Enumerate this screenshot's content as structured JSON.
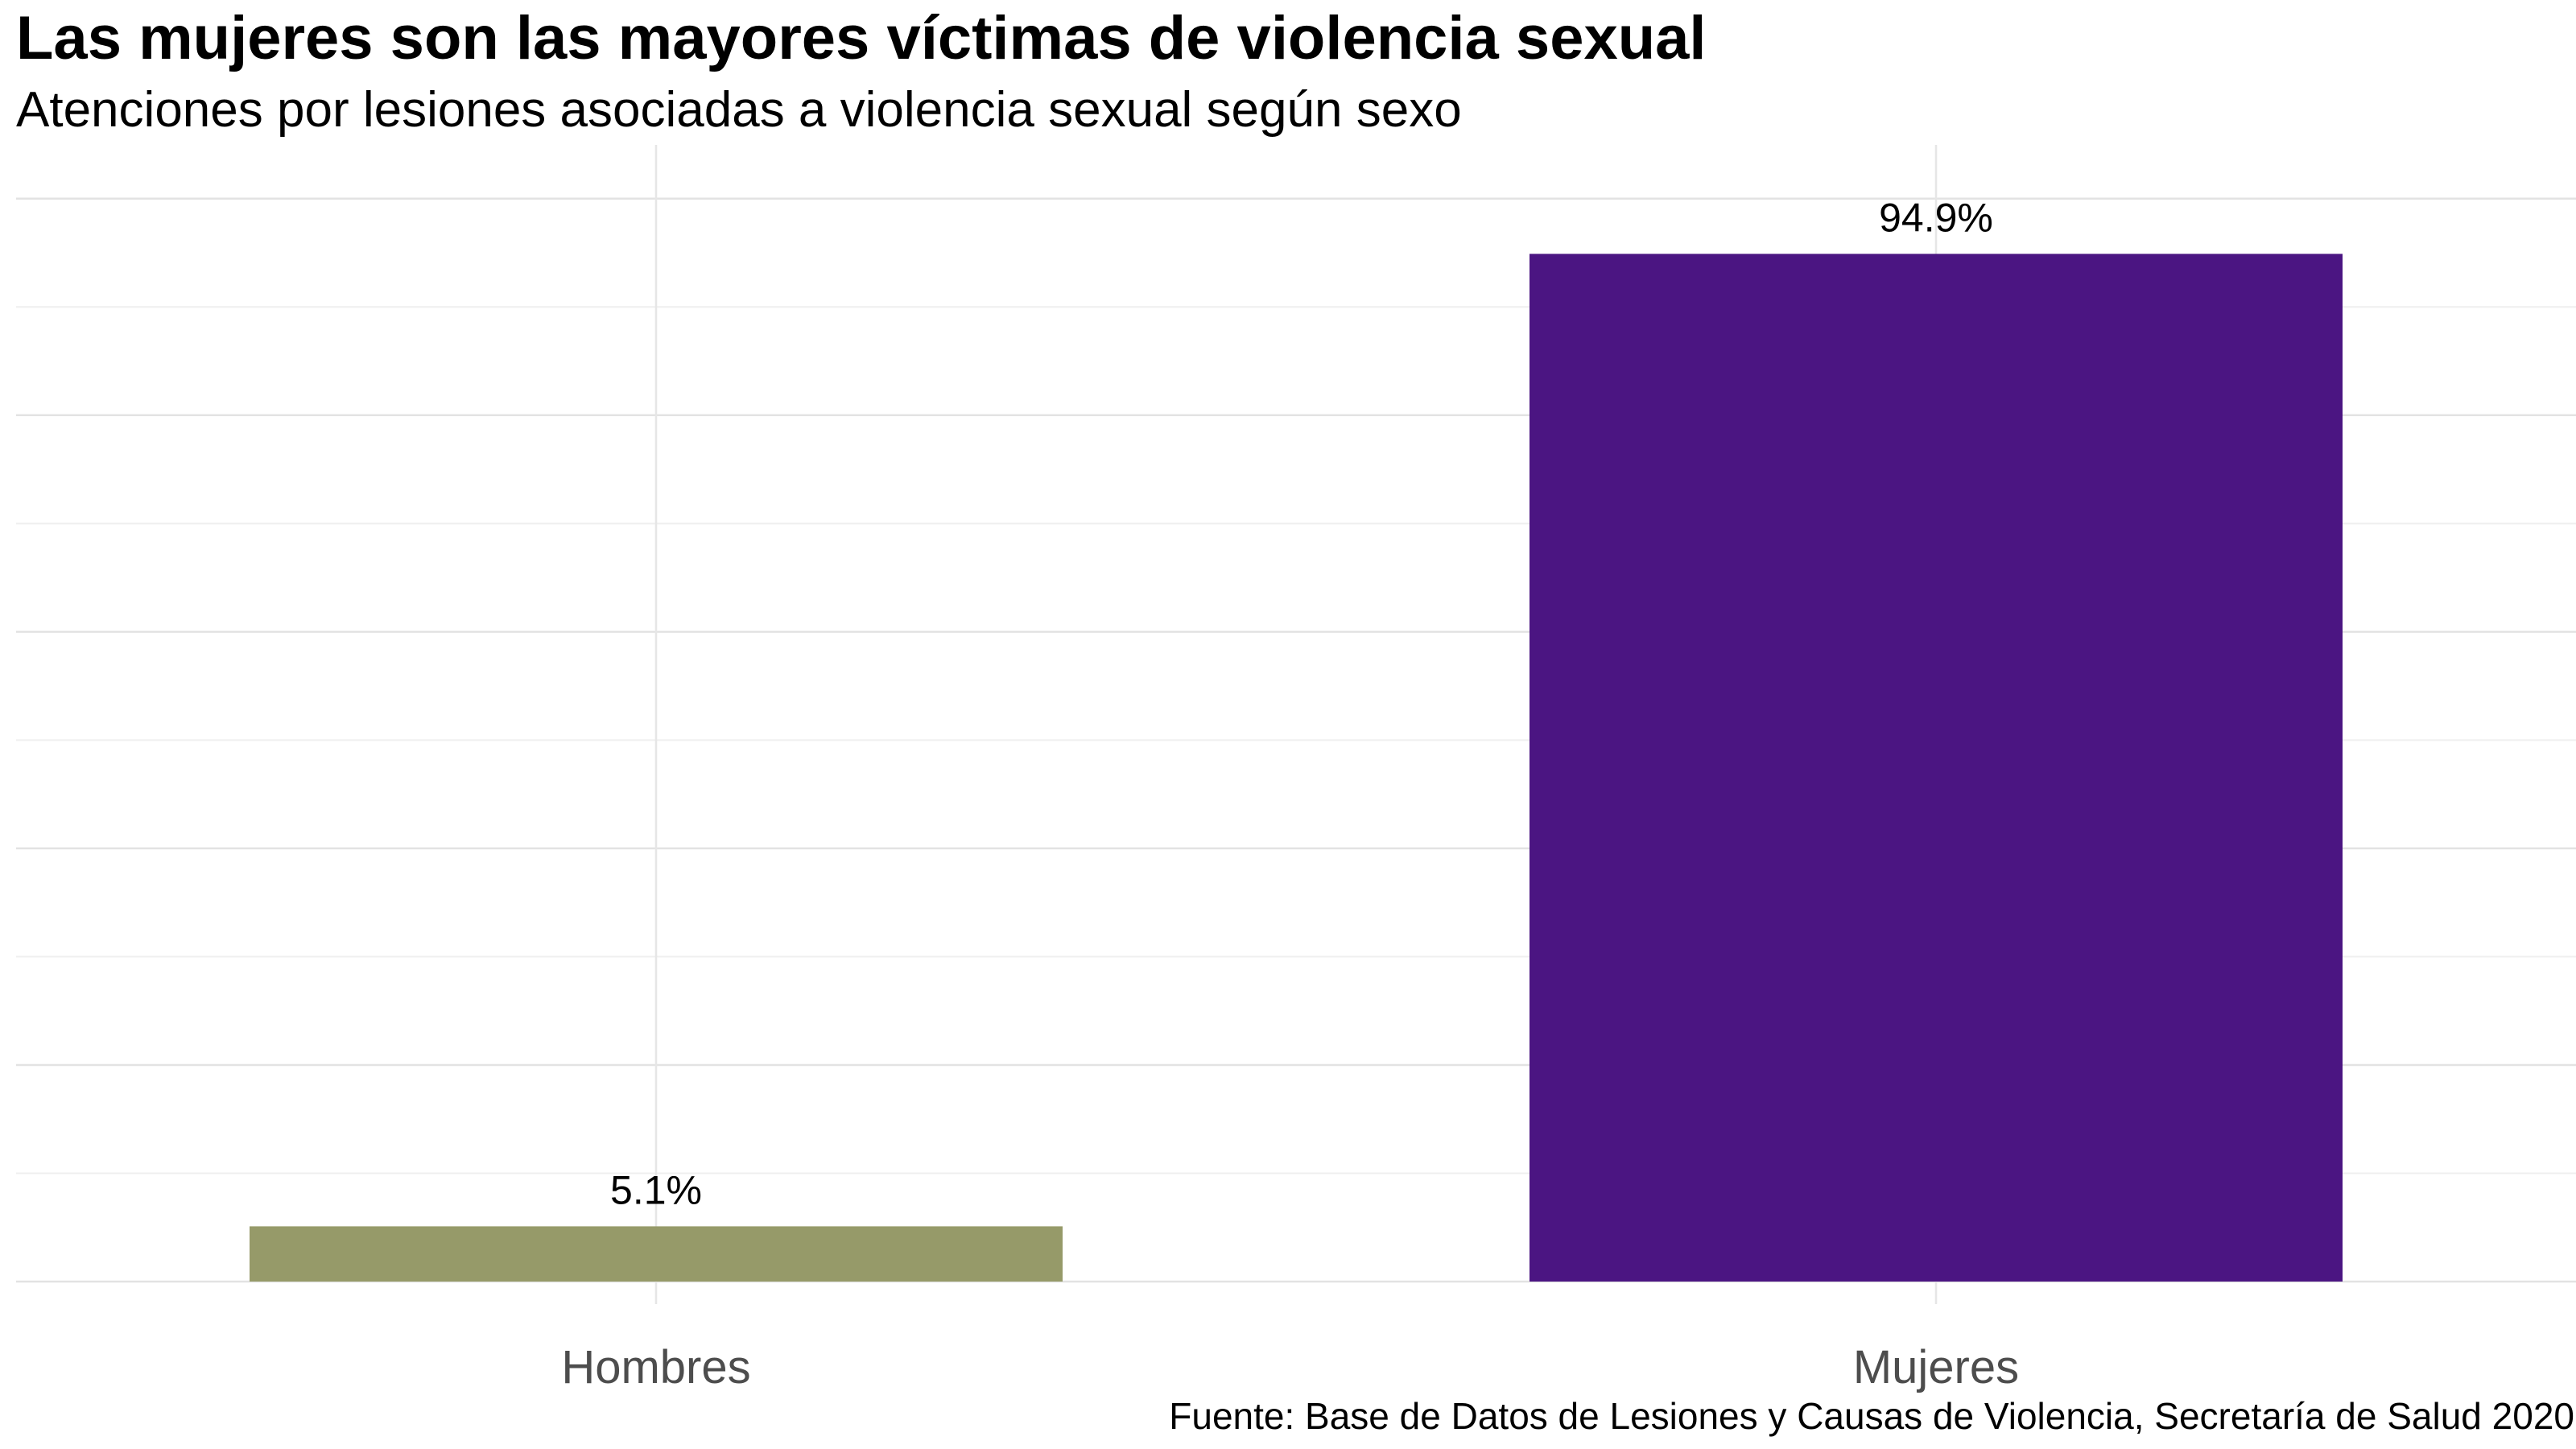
{
  "title": "Las mujeres son las mayores víctimas de violencia sexual",
  "subtitle": "Atenciones por lesiones asociadas a violencia sexual según sexo",
  "caption": "Fuente: Base de Datos de Lesiones y Causas de Violencia, Secretaría de Salud 2020",
  "chart_data": {
    "type": "bar",
    "title": "Las mujeres son las mayores víctimas de violencia sexual",
    "subtitle": "Atenciones por lesiones asociadas a violencia sexual según sexo",
    "categories": [
      "Hombres",
      "Mujeres"
    ],
    "values": [
      5.1,
      94.9
    ],
    "data_labels": [
      "5.1%",
      "94.9%"
    ],
    "colors": [
      "#969a69",
      "#4b1582"
    ],
    "ylim": [
      0,
      100
    ],
    "grid": true,
    "legend": "none",
    "y_axis_labels": false
  }
}
